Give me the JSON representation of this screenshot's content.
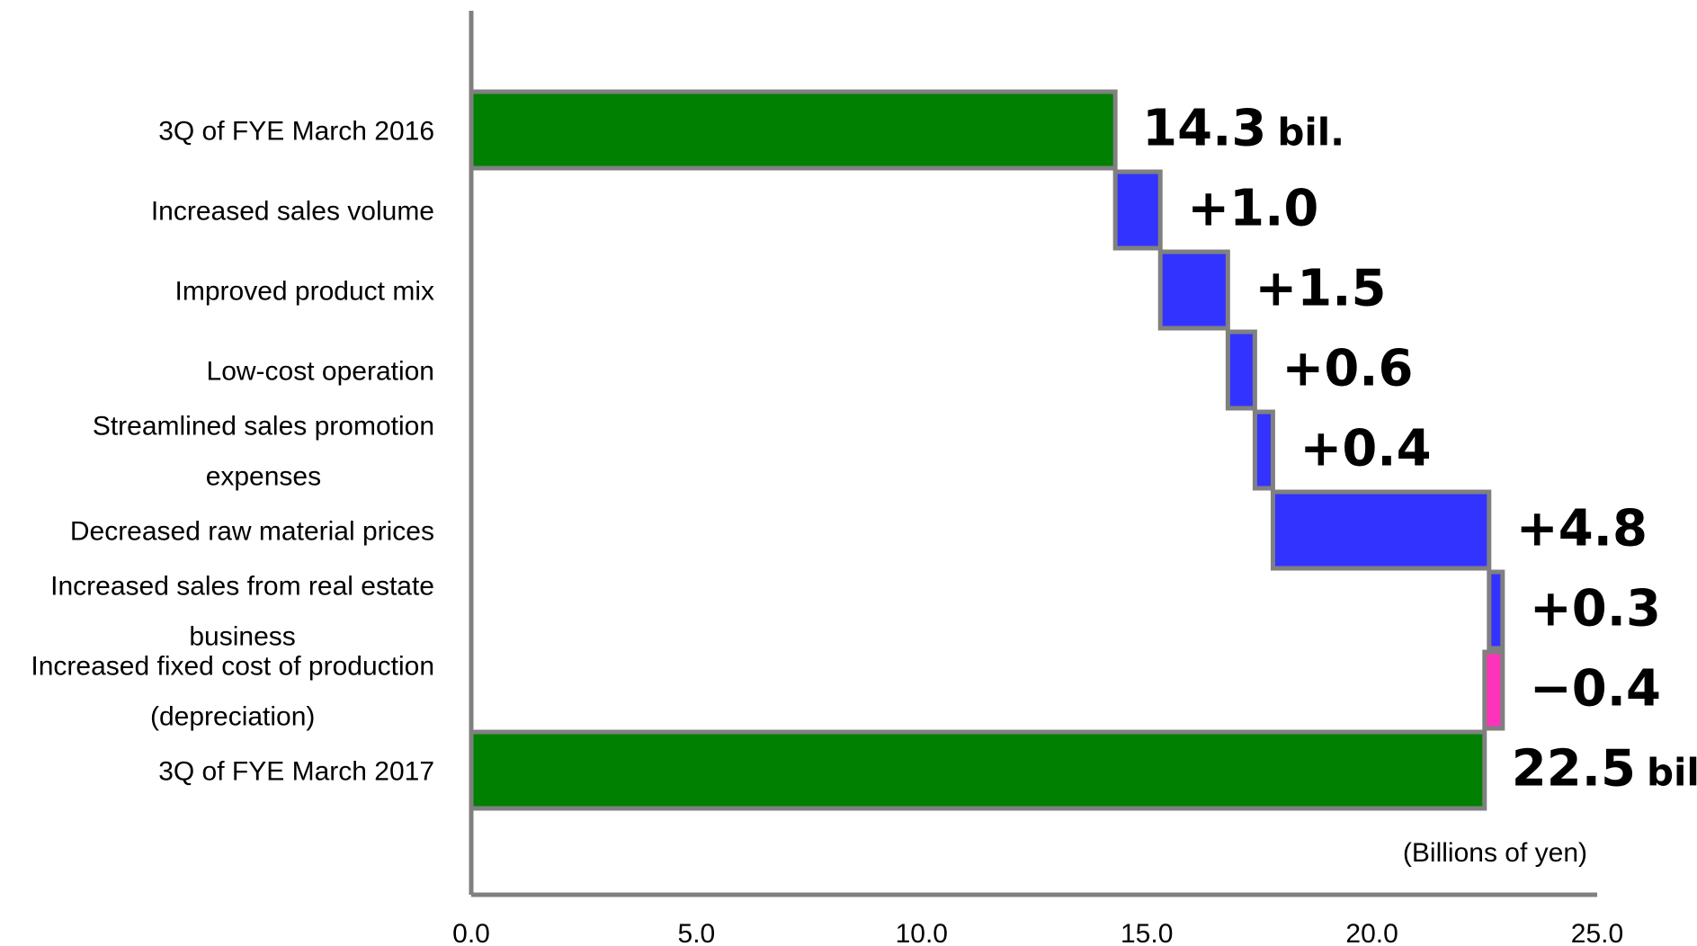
{
  "chart_data": {
    "type": "bar",
    "subtype": "waterfall",
    "orientation": "horizontal",
    "categories": [
      [
        "3Q of FYE March 2016"
      ],
      [
        "Increased sales volume"
      ],
      [
        "Improved product mix"
      ],
      [
        "Low-cost operation"
      ],
      [
        "Streamlined sales promotion",
        "expenses"
      ],
      [
        "Decreased raw material prices"
      ],
      [
        "Increased sales from real estate",
        "business"
      ],
      [
        "Increased fixed cost of production",
        "(depreciation)"
      ],
      [
        "3Q of FYE March 2017"
      ]
    ],
    "values": [
      14.3,
      1.0,
      1.5,
      0.6,
      0.4,
      4.8,
      0.3,
      -0.4,
      22.5
    ],
    "kinds": [
      "total",
      "increase",
      "increase",
      "increase",
      "increase",
      "increase",
      "increase",
      "decrease",
      "total"
    ],
    "data_labels": [
      {
        "num": "14.3",
        "suffix": "bil."
      },
      {
        "num": "+1.0",
        "suffix": ""
      },
      {
        "num": "+1.5",
        "suffix": ""
      },
      {
        "num": "+0.6",
        "suffix": ""
      },
      {
        "num": "+0.4",
        "suffix": ""
      },
      {
        "num": "+4.8",
        "suffix": ""
      },
      {
        "num": "+0.3",
        "suffix": ""
      },
      {
        "num": "−0.4",
        "suffix": ""
      },
      {
        "num": "22.5",
        "suffix": "bil."
      }
    ],
    "x_ticks": [
      "0.0",
      "5.0",
      "10.0",
      "15.0",
      "20.0",
      "25.0"
    ],
    "xlim": [
      0,
      25
    ],
    "unit_label": "(Billions of yen)",
    "grid": false,
    "colors": {
      "total": "#008000",
      "increase": "#3333ff",
      "decrease": "#ff33bb",
      "bar_border": "#808080",
      "axis": "#808080"
    }
  }
}
